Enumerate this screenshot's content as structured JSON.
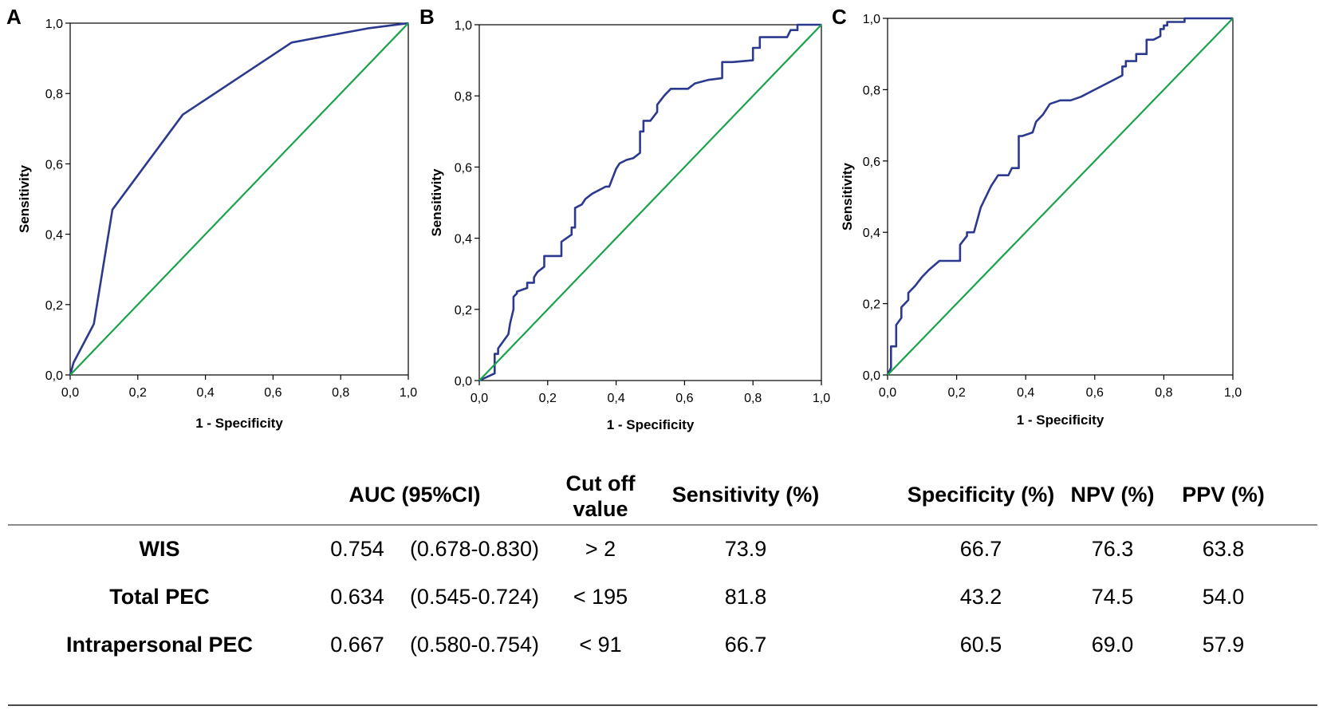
{
  "colors": {
    "roc": "#2b3a8f",
    "reference": "#1aa34a",
    "axis": "#000000",
    "rule": "#8a8a8a"
  },
  "chart_data": [
    {
      "type": "line",
      "panel": "A",
      "xlabel": "1 - Specificity",
      "ylabel": "Sensitivity",
      "xlim": [
        0,
        1
      ],
      "ylim": [
        0,
        1
      ],
      "ticks": [
        "0,0",
        "0,2",
        "0,4",
        "0,6",
        "0,8",
        "1,0"
      ],
      "grid": false,
      "series": [
        {
          "name": "ROC",
          "x": [
            0,
            0.01,
            0.07,
            0.125,
            0.333,
            0.655,
            0.88,
            1.0
          ],
          "y": [
            0,
            0.035,
            0.145,
            0.47,
            0.74,
            0.945,
            0.985,
            1.0
          ]
        },
        {
          "name": "Reference",
          "x": [
            0,
            1
          ],
          "y": [
            0,
            1
          ]
        }
      ]
    },
    {
      "type": "line",
      "panel": "B",
      "xlabel": "1 - Specificity",
      "ylabel": "Sensitivity",
      "xlim": [
        0,
        1
      ],
      "ylim": [
        0,
        1
      ],
      "ticks": [
        "0,0",
        "0,2",
        "0,4",
        "0,6",
        "0,8",
        "1,0"
      ],
      "grid": false,
      "series": [
        {
          "name": "ROC",
          "x": [
            0,
            0.045,
            0.045,
            0.055,
            0.055,
            0.07,
            0.085,
            0.09,
            0.1,
            0.1,
            0.11,
            0.11,
            0.14,
            0.14,
            0.16,
            0.16,
            0.17,
            0.19,
            0.19,
            0.24,
            0.24,
            0.27,
            0.27,
            0.28,
            0.28,
            0.3,
            0.31,
            0.33,
            0.37,
            0.38,
            0.4,
            0.41,
            0.43,
            0.45,
            0.47,
            0.47,
            0.48,
            0.48,
            0.5,
            0.52,
            0.52,
            0.54,
            0.56,
            0.61,
            0.63,
            0.67,
            0.71,
            0.71,
            0.74,
            0.8,
            0.8,
            0.82,
            0.82,
            0.9,
            0.91,
            0.93,
            0.93,
            0.96,
            0.96,
            1.0
          ],
          "y": [
            0,
            0.02,
            0.075,
            0.075,
            0.09,
            0.11,
            0.13,
            0.16,
            0.2,
            0.235,
            0.245,
            0.25,
            0.26,
            0.275,
            0.275,
            0.29,
            0.305,
            0.32,
            0.35,
            0.35,
            0.39,
            0.41,
            0.43,
            0.43,
            0.485,
            0.495,
            0.51,
            0.525,
            0.545,
            0.545,
            0.595,
            0.61,
            0.62,
            0.625,
            0.64,
            0.7,
            0.7,
            0.73,
            0.73,
            0.755,
            0.775,
            0.8,
            0.82,
            0.82,
            0.835,
            0.845,
            0.85,
            0.895,
            0.895,
            0.9,
            0.935,
            0.935,
            0.965,
            0.965,
            0.985,
            0.985,
            1.0,
            1.0,
            1.0,
            1.0
          ]
        },
        {
          "name": "Reference",
          "x": [
            0,
            1
          ],
          "y": [
            0,
            1
          ]
        }
      ]
    },
    {
      "type": "line",
      "panel": "C",
      "xlabel": "1 - Specificity",
      "ylabel": "Sensitivity",
      "xlim": [
        0,
        1
      ],
      "ylim": [
        0,
        1
      ],
      "ticks": [
        "0,0",
        "0,2",
        "0,4",
        "0,6",
        "0,8",
        "1,0"
      ],
      "grid": false,
      "series": [
        {
          "name": "ROC",
          "x": [
            0,
            0.01,
            0.01,
            0.025,
            0.025,
            0.04,
            0.04,
            0.06,
            0.06,
            0.08,
            0.1,
            0.12,
            0.15,
            0.21,
            0.21,
            0.23,
            0.23,
            0.25,
            0.27,
            0.3,
            0.32,
            0.35,
            0.36,
            0.38,
            0.38,
            0.39,
            0.42,
            0.43,
            0.45,
            0.47,
            0.5,
            0.53,
            0.56,
            0.6,
            0.66,
            0.68,
            0.68,
            0.69,
            0.69,
            0.72,
            0.72,
            0.75,
            0.75,
            0.77,
            0.79,
            0.79,
            0.8,
            0.8,
            0.81,
            0.81,
            0.86,
            0.86,
            0.88,
            0.88,
            1.0
          ],
          "y": [
            0,
            0.02,
            0.08,
            0.08,
            0.14,
            0.16,
            0.19,
            0.21,
            0.23,
            0.25,
            0.275,
            0.295,
            0.32,
            0.32,
            0.365,
            0.39,
            0.4,
            0.4,
            0.47,
            0.53,
            0.56,
            0.56,
            0.58,
            0.58,
            0.67,
            0.67,
            0.68,
            0.71,
            0.73,
            0.76,
            0.77,
            0.77,
            0.78,
            0.8,
            0.83,
            0.84,
            0.865,
            0.865,
            0.88,
            0.88,
            0.9,
            0.9,
            0.94,
            0.94,
            0.95,
            0.97,
            0.97,
            0.98,
            0.98,
            0.99,
            0.99,
            1.0,
            1.0,
            1.0,
            1.0
          ]
        },
        {
          "name": "Reference",
          "x": [
            0,
            1
          ],
          "y": [
            0,
            1
          ]
        }
      ]
    }
  ],
  "table": {
    "headers": {
      "auc": "AUC (95%CI)",
      "cutoff_line1": "Cut off",
      "cutoff_line2": "value",
      "sensitivity": "Sensitivity (%)",
      "specificity": "Specificity (%)",
      "npv": "NPV (%)",
      "ppv": "PPV (%)"
    },
    "rows": [
      {
        "name": "WIS",
        "auc": "0.754",
        "ci": "(0.678-0.830)",
        "cutoff": "> 2",
        "sensitivity": "73.9",
        "specificity": "66.7",
        "npv": "76.3",
        "ppv": "63.8"
      },
      {
        "name": "Total PEC",
        "auc": "0.634",
        "ci": "(0.545-0.724)",
        "cutoff": "< 195",
        "sensitivity": "81.8",
        "specificity": "43.2",
        "npv": "74.5",
        "ppv": "54.0"
      },
      {
        "name": "Intrapersonal PEC",
        "auc": "0.667",
        "ci": "(0.580-0.754)",
        "cutoff": "< 91",
        "sensitivity": "66.7",
        "specificity": "60.5",
        "npv": "69.0",
        "ppv": "57.9"
      }
    ]
  }
}
